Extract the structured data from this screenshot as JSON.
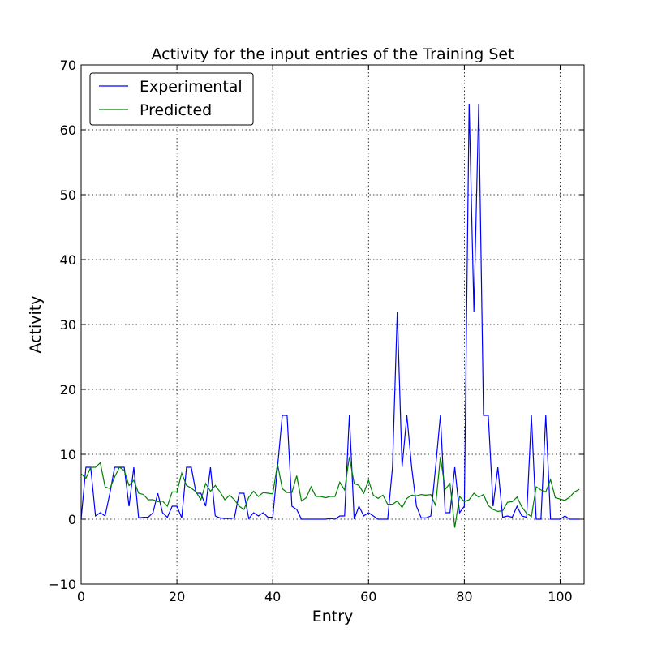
{
  "chart_data": {
    "type": "line",
    "title": "Activity for the input entries of the Training Set",
    "xlabel": "Entry",
    "ylabel": "Activity",
    "xlim": [
      0,
      105
    ],
    "ylim": [
      -10,
      70
    ],
    "xticks": [
      0,
      20,
      40,
      60,
      80,
      100
    ],
    "yticks": [
      -10,
      0,
      10,
      20,
      30,
      40,
      50,
      60,
      70
    ],
    "grid": true,
    "legend_position": "upper-left",
    "series": [
      {
        "name": "Experimental",
        "color": "#0000ff",
        "values": [
          0,
          8,
          8,
          0.5,
          1,
          0.5,
          4,
          8,
          8,
          8,
          2,
          8,
          0.2,
          0.3,
          0.3,
          1,
          4,
          1,
          0.3,
          2,
          2,
          0.2,
          8,
          8,
          4,
          4,
          2,
          8,
          0.5,
          0.2,
          0.1,
          0.1,
          0.2,
          4,
          4,
          0.1,
          1,
          0.5,
          1,
          0.3,
          0.3,
          8,
          16,
          16,
          2,
          1.5,
          0,
          0,
          0,
          0,
          0,
          0,
          0.1,
          0,
          0.5,
          0.5,
          16,
          0,
          2,
          0.5,
          1,
          0.5,
          0,
          0,
          0,
          8,
          32,
          8,
          16,
          8,
          2,
          0.2,
          0.2,
          0.5,
          8,
          16,
          1,
          1,
          8,
          1,
          2,
          64,
          32,
          64,
          16,
          16,
          2,
          8,
          0.3,
          0.5,
          0.3,
          2,
          0.5,
          0.3,
          16,
          0,
          0,
          16,
          0,
          0,
          0,
          0.5,
          0,
          0,
          0
        ]
      },
      {
        "name": "Predicted",
        "color": "#008000",
        "values": [
          7,
          6.3,
          8,
          8,
          8.7,
          5,
          4.7,
          6.5,
          8,
          7.5,
          5.2,
          6,
          4,
          3.8,
          3,
          3,
          2.7,
          2.8,
          2,
          4.2,
          4.2,
          7.1,
          5.2,
          4.8,
          4.2,
          3,
          5.5,
          4.3,
          5.2,
          4.2,
          3,
          3.7,
          3,
          2,
          1.5,
          3.4,
          4.3,
          3.5,
          4.1,
          4,
          3.9,
          8.5,
          4.7,
          4.1,
          4.1,
          6.7,
          2.8,
          3.3,
          5,
          3.5,
          3.5,
          3.3,
          3.5,
          3.5,
          5.7,
          4.5,
          9.6,
          5.5,
          5.2,
          4,
          6,
          3.7,
          3.2,
          3.7,
          2.3,
          2.3,
          2.8,
          1.8,
          3.2,
          3.7,
          3.6,
          3.8,
          3.7,
          3.8,
          2.1,
          9.6,
          4.6,
          5.5,
          -1.3,
          3.5,
          2.7,
          3,
          4,
          3.4,
          3.8,
          2.1,
          1.5,
          1.2,
          1.3,
          2.6,
          2.7,
          3.4,
          1.9,
          0.9,
          0.4,
          5,
          4.5,
          4.2,
          6.1,
          3.3,
          3.1,
          2.9,
          3.4,
          4.2,
          4.6
        ]
      }
    ]
  }
}
